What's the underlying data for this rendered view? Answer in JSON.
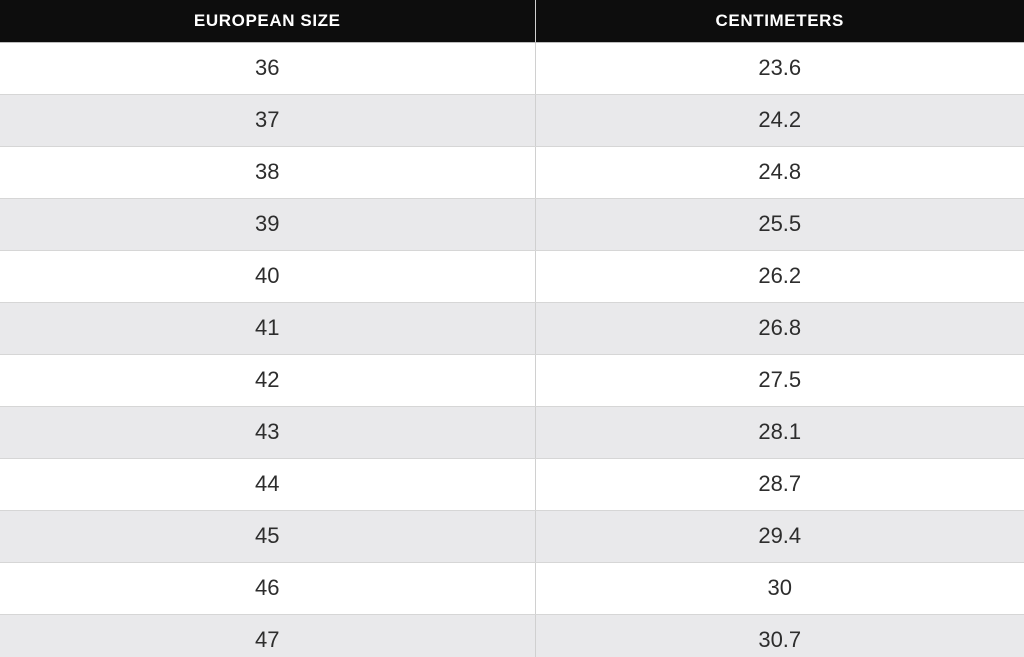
{
  "chart_data": {
    "type": "table",
    "columns": [
      "EUROPEAN SIZE",
      "CENTIMETERS"
    ],
    "rows": [
      [
        "36",
        "23.6"
      ],
      [
        "37",
        "24.2"
      ],
      [
        "38",
        "24.8"
      ],
      [
        "39",
        "25.5"
      ],
      [
        "40",
        "26.2"
      ],
      [
        "41",
        "26.8"
      ],
      [
        "42",
        "27.5"
      ],
      [
        "43",
        "28.1"
      ],
      [
        "44",
        "28.7"
      ],
      [
        "45",
        "29.4"
      ],
      [
        "46",
        "30"
      ],
      [
        "47",
        "30.7"
      ]
    ]
  },
  "colors": {
    "header_bg": "#0d0d0d",
    "header_text": "#ffffff",
    "row_bg": "#ffffff",
    "stripe_bg": "#e9e9eb",
    "cell_text": "#2d2d2d",
    "divider": "#d0d0d0",
    "row_border": "#d6d6d6"
  }
}
